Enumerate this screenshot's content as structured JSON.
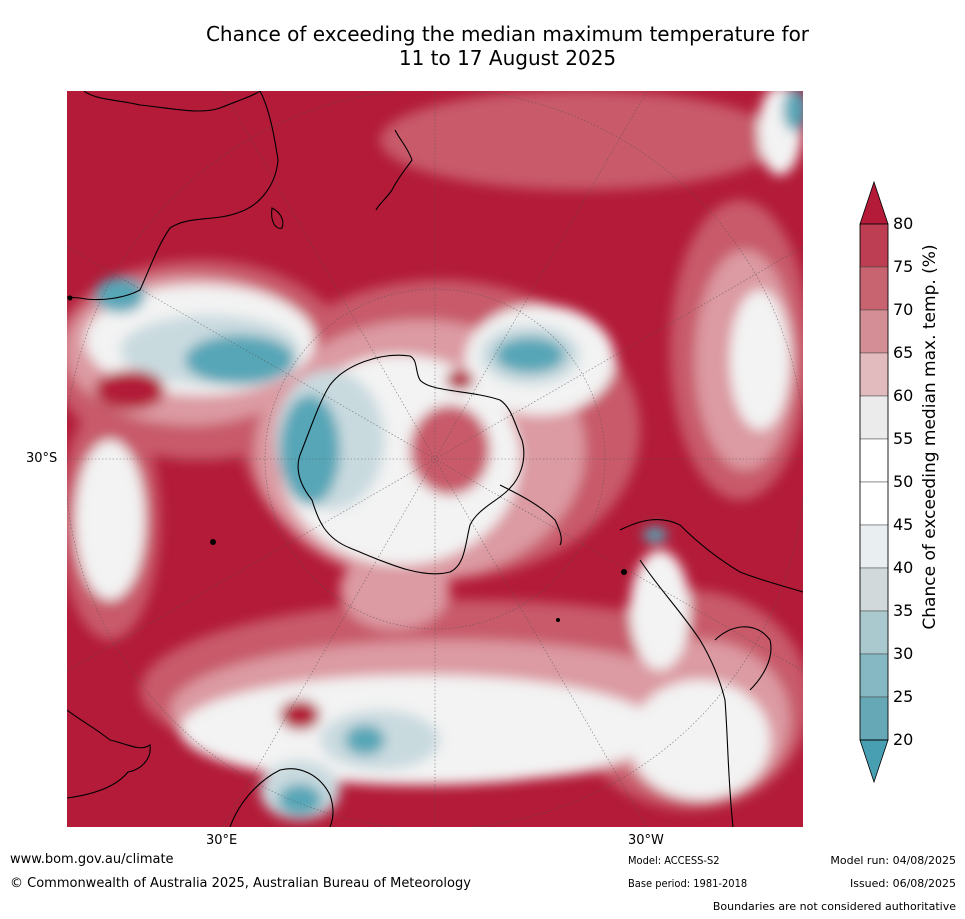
{
  "title": {
    "line1": "Chance of exceeding the median maximum temperature for",
    "line2": "11 to 17 August 2025"
  },
  "map": {
    "lat_label": "30°S",
    "lon_labels": {
      "east": "30°E",
      "west": "30°W"
    },
    "colors": {
      "very_high": "#b31b38",
      "high": "#c85a6a",
      "mid_high": "#dc9aa2",
      "neutral": "#f3f3f3",
      "mid_low": "#c9dadf",
      "low": "#56a6b7",
      "land_outline": "#000000"
    }
  },
  "colorbar": {
    "title": "Chance of exceeding median max. temp. (%)",
    "ticks": [
      "80",
      "75",
      "70",
      "65",
      "60",
      "55",
      "50",
      "45",
      "40",
      "35",
      "30",
      "25",
      "20"
    ],
    "colors": [
      "#b31b38",
      "#bd3e52",
      "#c7646f",
      "#d38e96",
      "#e2bbbf",
      "#ebebeb",
      "#ffffff",
      "#ffffff",
      "#e9eef0",
      "#d2d9db",
      "#a9c9ce",
      "#85b8c3",
      "#66a8b6",
      "#479fb1"
    ]
  },
  "footer": {
    "website": "www.bom.gov.au/climate",
    "copyright": "© Commonwealth of Australia 2025, Australian Bureau of Meteorology",
    "model": "Model: ACCESS-S2",
    "base_period": "Base period: 1981-2018",
    "model_run": "Model run: 04/08/2025",
    "issued": "Issued: 06/08/2025",
    "disclaimer": "Boundaries are not considered authoritative"
  }
}
